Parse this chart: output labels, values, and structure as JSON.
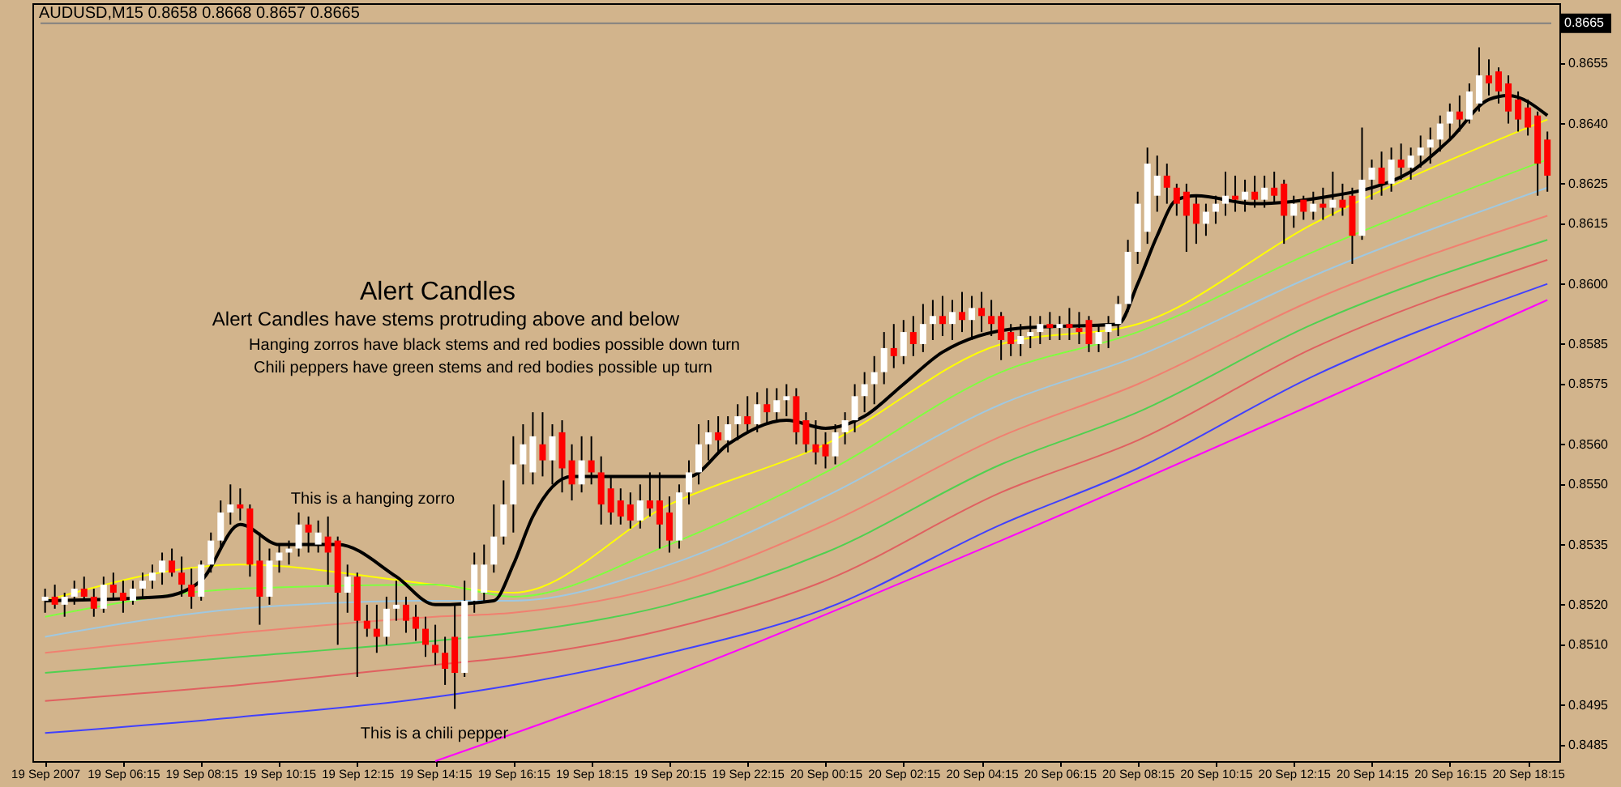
{
  "chart_data": {
    "type": "candlestick",
    "title": "AUDUSD,M15  0.8658 0.8668 0.8657 0.8665",
    "annotations": [
      "Alert Candles",
      "Alert Candles have stems protruding above and below",
      "Hanging zorros have black stems and red bodies possible down turn",
      "Chili peppers have green stems and red bodies possible up turn",
      "This is a hanging zorro",
      "This is a chili pepper"
    ],
    "x": [
      "2007-09-19T04:15",
      "2007-09-19T04:30",
      "2007-09-19T04:45",
      "2007-09-19T05:00",
      "2007-09-19T05:15",
      "2007-09-19T05:30",
      "2007-09-19T05:45",
      "2007-09-19T06:00",
      "2007-09-19T06:15",
      "2007-09-19T06:30",
      "2007-09-19T06:45",
      "2007-09-19T07:00",
      "2007-09-19T07:15",
      "2007-09-19T07:30",
      "2007-09-19T07:45",
      "2007-09-19T08:00",
      "2007-09-19T08:15",
      "2007-09-19T08:30",
      "2007-09-19T08:45",
      "2007-09-19T09:00",
      "2007-09-19T09:15",
      "2007-09-19T09:30",
      "2007-09-19T09:45",
      "2007-09-19T10:00",
      "2007-09-19T10:15",
      "2007-09-19T10:30",
      "2007-09-19T10:45",
      "2007-09-19T11:00",
      "2007-09-19T11:15",
      "2007-09-19T11:30",
      "2007-09-19T11:45",
      "2007-09-19T12:00",
      "2007-09-19T12:15",
      "2007-09-19T12:30",
      "2007-09-19T12:45",
      "2007-09-19T13:00",
      "2007-09-19T13:15",
      "2007-09-19T13:30",
      "2007-09-19T13:45",
      "2007-09-19T14:00",
      "2007-09-19T14:15",
      "2007-09-19T14:30",
      "2007-09-19T14:45",
      "2007-09-19T15:00",
      "2007-09-19T15:15",
      "2007-09-19T15:30",
      "2007-09-19T15:45",
      "2007-09-19T16:00",
      "2007-09-19T16:15",
      "2007-09-19T16:30",
      "2007-09-19T16:45",
      "2007-09-19T17:00",
      "2007-09-19T17:15",
      "2007-09-19T17:30",
      "2007-09-19T17:45",
      "2007-09-19T18:00",
      "2007-09-19T18:15",
      "2007-09-19T18:30",
      "2007-09-19T18:45",
      "2007-09-19T19:00",
      "2007-09-19T19:15",
      "2007-09-19T19:30",
      "2007-09-19T19:45",
      "2007-09-19T20:00",
      "2007-09-19T20:15",
      "2007-09-19T20:30",
      "2007-09-19T20:45",
      "2007-09-19T21:00",
      "2007-09-19T21:15",
      "2007-09-19T21:30",
      "2007-09-19T21:45",
      "2007-09-19T22:00",
      "2007-09-19T22:15",
      "2007-09-19T22:30",
      "2007-09-19T22:45",
      "2007-09-19T23:00",
      "2007-09-19T23:15",
      "2007-09-19T23:30",
      "2007-09-19T23:45",
      "2007-09-20T00:00",
      "2007-09-20T00:15",
      "2007-09-20T00:30",
      "2007-09-20T00:45",
      "2007-09-20T01:00",
      "2007-09-20T01:15",
      "2007-09-20T01:30",
      "2007-09-20T01:45",
      "2007-09-20T02:00",
      "2007-09-20T02:15",
      "2007-09-20T02:30",
      "2007-09-20T02:45",
      "2007-09-20T03:00",
      "2007-09-20T03:15",
      "2007-09-20T03:30",
      "2007-09-20T03:45",
      "2007-09-20T04:00",
      "2007-09-20T04:15",
      "2007-09-20T04:30",
      "2007-09-20T04:45",
      "2007-09-20T05:00",
      "2007-09-20T05:15",
      "2007-09-20T05:30",
      "2007-09-20T05:45",
      "2007-09-20T06:00",
      "2007-09-20T06:15",
      "2007-09-20T06:30",
      "2007-09-20T06:45",
      "2007-09-20T07:00",
      "2007-09-20T07:15",
      "2007-09-20T07:30",
      "2007-09-20T07:45",
      "2007-09-20T08:00",
      "2007-09-20T08:15",
      "2007-09-20T08:30",
      "2007-09-20T08:45",
      "2007-09-20T09:00",
      "2007-09-20T09:15",
      "2007-09-20T09:30",
      "2007-09-20T09:45",
      "2007-09-20T10:00",
      "2007-09-20T10:15",
      "2007-09-20T10:30",
      "2007-09-20T10:45",
      "2007-09-20T11:00",
      "2007-09-20T11:15",
      "2007-09-20T11:30",
      "2007-09-20T11:45",
      "2007-09-20T12:00",
      "2007-09-20T12:15",
      "2007-09-20T12:30",
      "2007-09-20T12:45",
      "2007-09-20T13:00",
      "2007-09-20T13:15",
      "2007-09-20T13:30",
      "2007-09-20T13:45",
      "2007-09-20T14:00",
      "2007-09-20T14:15",
      "2007-09-20T14:30",
      "2007-09-20T14:45",
      "2007-09-20T15:00",
      "2007-09-20T15:15",
      "2007-09-20T15:30",
      "2007-09-20T15:45",
      "2007-09-20T16:00",
      "2007-09-20T16:15",
      "2007-09-20T16:30",
      "2007-09-20T16:45",
      "2007-09-20T17:00",
      "2007-09-20T17:15",
      "2007-09-20T17:30",
      "2007-09-20T17:45",
      "2007-09-20T18:00",
      "2007-09-20T18:15",
      "2007-09-20T18:30",
      "2007-09-20T18:45"
    ],
    "ohlc": [
      [
        0.8521,
        0.8524,
        0.8518,
        0.8522
      ],
      [
        0.8522,
        0.8525,
        0.8519,
        0.852
      ],
      [
        0.852,
        0.8523,
        0.8517,
        0.8522
      ],
      [
        0.8522,
        0.8526,
        0.852,
        0.8524
      ],
      [
        0.8524,
        0.8527,
        0.8521,
        0.8522
      ],
      [
        0.8522,
        0.8524,
        0.8517,
        0.8519
      ],
      [
        0.8519,
        0.8527,
        0.8518,
        0.8525
      ],
      [
        0.8525,
        0.8528,
        0.8521,
        0.8523
      ],
      [
        0.8523,
        0.8526,
        0.8518,
        0.8521
      ],
      [
        0.8521,
        0.8526,
        0.852,
        0.8524
      ],
      [
        0.8524,
        0.8528,
        0.8522,
        0.8526
      ],
      [
        0.8526,
        0.853,
        0.8524,
        0.8528
      ],
      [
        0.8528,
        0.8533,
        0.8525,
        0.8531
      ],
      [
        0.8531,
        0.8534,
        0.8527,
        0.8528
      ],
      [
        0.8528,
        0.8532,
        0.8522,
        0.8525
      ],
      [
        0.8525,
        0.8529,
        0.8519,
        0.8522
      ],
      [
        0.8522,
        0.8531,
        0.8521,
        0.853
      ],
      [
        0.853,
        0.8538,
        0.8528,
        0.8536
      ],
      [
        0.8536,
        0.8546,
        0.8534,
        0.8543
      ],
      [
        0.8543,
        0.855,
        0.854,
        0.8545
      ],
      [
        0.8545,
        0.8549,
        0.8541,
        0.8544
      ],
      [
        0.8544,
        0.8545,
        0.8527,
        0.853
      ],
      [
        0.8531,
        0.8538,
        0.8515,
        0.8522
      ],
      [
        0.8522,
        0.8534,
        0.852,
        0.8531
      ],
      [
        0.8531,
        0.8535,
        0.8528,
        0.8533
      ],
      [
        0.8533,
        0.8536,
        0.853,
        0.8534
      ],
      [
        0.8534,
        0.8543,
        0.8532,
        0.854
      ],
      [
        0.854,
        0.8542,
        0.8533,
        0.8538
      ],
      [
        0.8535,
        0.8541,
        0.8533,
        0.8538
      ],
      [
        0.8537,
        0.8542,
        0.8525,
        0.8533
      ],
      [
        0.8536,
        0.8537,
        0.851,
        0.8523
      ],
      [
        0.8523,
        0.853,
        0.8518,
        0.8527
      ],
      [
        0.8527,
        0.8528,
        0.8502,
        0.8516
      ],
      [
        0.8516,
        0.852,
        0.8512,
        0.8514
      ],
      [
        0.8514,
        0.852,
        0.8508,
        0.8512
      ],
      [
        0.8512,
        0.8522,
        0.851,
        0.8519
      ],
      [
        0.8519,
        0.8526,
        0.8516,
        0.852
      ],
      [
        0.852,
        0.8522,
        0.8513,
        0.8516
      ],
      [
        0.8517,
        0.852,
        0.8511,
        0.8514
      ],
      [
        0.8514,
        0.8517,
        0.8507,
        0.851
      ],
      [
        0.851,
        0.8515,
        0.8505,
        0.8508
      ],
      [
        0.8508,
        0.8512,
        0.85,
        0.8504
      ],
      [
        0.8512,
        0.852,
        0.8494,
        0.8503
      ],
      [
        0.8503,
        0.8526,
        0.8502,
        0.8521
      ],
      [
        0.8521,
        0.8533,
        0.8518,
        0.853
      ],
      [
        0.8523,
        0.8535,
        0.8521,
        0.853
      ],
      [
        0.853,
        0.8545,
        0.8528,
        0.8537
      ],
      [
        0.8537,
        0.8551,
        0.8535,
        0.8545
      ],
      [
        0.8545,
        0.8562,
        0.8538,
        0.8555
      ],
      [
        0.8555,
        0.8565,
        0.855,
        0.856
      ],
      [
        0.8553,
        0.8568,
        0.855,
        0.8562
      ],
      [
        0.856,
        0.8568,
        0.8552,
        0.8556
      ],
      [
        0.8556,
        0.8565,
        0.855,
        0.8562
      ],
      [
        0.8563,
        0.8566,
        0.8548,
        0.8554
      ],
      [
        0.8556,
        0.856,
        0.8546,
        0.855
      ],
      [
        0.855,
        0.8562,
        0.8548,
        0.8556
      ],
      [
        0.8556,
        0.8562,
        0.855,
        0.8553
      ],
      [
        0.8553,
        0.8557,
        0.854,
        0.8545
      ],
      [
        0.8549,
        0.8552,
        0.854,
        0.8543
      ],
      [
        0.8546,
        0.8549,
        0.854,
        0.8542
      ],
      [
        0.8545,
        0.8548,
        0.8539,
        0.8541
      ],
      [
        0.8541,
        0.855,
        0.8539,
        0.8546
      ],
      [
        0.8546,
        0.8553,
        0.8542,
        0.8544
      ],
      [
        0.8546,
        0.8553,
        0.8534,
        0.854
      ],
      [
        0.8543,
        0.8547,
        0.8533,
        0.8536
      ],
      [
        0.8536,
        0.855,
        0.8534,
        0.8548
      ],
      [
        0.8548,
        0.8556,
        0.8545,
        0.8553
      ],
      [
        0.8553,
        0.8565,
        0.855,
        0.856
      ],
      [
        0.856,
        0.8566,
        0.8556,
        0.8563
      ],
      [
        0.8563,
        0.8567,
        0.8558,
        0.8561
      ],
      [
        0.8561,
        0.8567,
        0.8558,
        0.8565
      ],
      [
        0.8565,
        0.857,
        0.8561,
        0.8567
      ],
      [
        0.8567,
        0.8572,
        0.8563,
        0.8565
      ],
      [
        0.8565,
        0.8573,
        0.8563,
        0.857
      ],
      [
        0.857,
        0.8574,
        0.8565,
        0.8568
      ],
      [
        0.8568,
        0.8574,
        0.8566,
        0.8571
      ],
      [
        0.8571,
        0.8575,
        0.8567,
        0.8572
      ],
      [
        0.8572,
        0.8574,
        0.856,
        0.8563
      ],
      [
        0.8566,
        0.8568,
        0.8558,
        0.856
      ],
      [
        0.856,
        0.8566,
        0.8555,
        0.8558
      ],
      [
        0.856,
        0.8563,
        0.8554,
        0.8557
      ],
      [
        0.8557,
        0.8565,
        0.8555,
        0.8563
      ],
      [
        0.8563,
        0.8568,
        0.856,
        0.8566
      ],
      [
        0.8566,
        0.8575,
        0.8563,
        0.8572
      ],
      [
        0.8572,
        0.8578,
        0.8568,
        0.8575
      ],
      [
        0.8575,
        0.8582,
        0.857,
        0.8578
      ],
      [
        0.8578,
        0.8588,
        0.8575,
        0.8584
      ],
      [
        0.8584,
        0.859,
        0.8579,
        0.8582
      ],
      [
        0.8582,
        0.8591,
        0.858,
        0.8588
      ],
      [
        0.8588,
        0.8592,
        0.8582,
        0.8585
      ],
      [
        0.8585,
        0.8595,
        0.8583,
        0.859
      ],
      [
        0.859,
        0.8596,
        0.8586,
        0.8592
      ],
      [
        0.8592,
        0.8597,
        0.8587,
        0.859
      ],
      [
        0.859,
        0.8596,
        0.8586,
        0.8593
      ],
      [
        0.8593,
        0.8598,
        0.8588,
        0.8591
      ],
      [
        0.8591,
        0.8597,
        0.8586,
        0.8594
      ],
      [
        0.8594,
        0.8598,
        0.8588,
        0.8592
      ],
      [
        0.8592,
        0.8596,
        0.8587,
        0.859
      ],
      [
        0.8592,
        0.8593,
        0.8581,
        0.8586
      ],
      [
        0.8588,
        0.859,
        0.8582,
        0.8585
      ],
      [
        0.8585,
        0.859,
        0.8582,
        0.8587
      ],
      [
        0.8587,
        0.8592,
        0.8584,
        0.8588
      ],
      [
        0.8588,
        0.8592,
        0.8585,
        0.859
      ],
      [
        0.859,
        0.8593,
        0.8586,
        0.8589
      ],
      [
        0.8589,
        0.8592,
        0.8586,
        0.859
      ],
      [
        0.859,
        0.8594,
        0.8586,
        0.8589
      ],
      [
        0.8589,
        0.8593,
        0.8585,
        0.8588
      ],
      [
        0.8591,
        0.8592,
        0.8583,
        0.8585
      ],
      [
        0.8585,
        0.859,
        0.8583,
        0.8588
      ],
      [
        0.8588,
        0.8592,
        0.8584,
        0.859
      ],
      [
        0.859,
        0.8597,
        0.8587,
        0.8595
      ],
      [
        0.8595,
        0.8611,
        0.8593,
        0.8608
      ],
      [
        0.8608,
        0.8623,
        0.8605,
        0.862
      ],
      [
        0.8613,
        0.8634,
        0.861,
        0.863
      ],
      [
        0.8622,
        0.8632,
        0.8618,
        0.8627
      ],
      [
        0.8627,
        0.863,
        0.862,
        0.8624
      ],
      [
        0.8624,
        0.8625,
        0.8617,
        0.862
      ],
      [
        0.8623,
        0.8625,
        0.8608,
        0.8617
      ],
      [
        0.862,
        0.8622,
        0.861,
        0.8615
      ],
      [
        0.8615,
        0.862,
        0.8612,
        0.8618
      ],
      [
        0.8618,
        0.8622,
        0.8615,
        0.862
      ],
      [
        0.862,
        0.8628,
        0.8617,
        0.8622
      ],
      [
        0.8622,
        0.8627,
        0.8618,
        0.8621
      ],
      [
        0.8621,
        0.8626,
        0.8618,
        0.8623
      ],
      [
        0.8623,
        0.8627,
        0.8619,
        0.8621
      ],
      [
        0.8621,
        0.8627,
        0.8619,
        0.8624
      ],
      [
        0.8624,
        0.8628,
        0.862,
        0.8622
      ],
      [
        0.8625,
        0.8626,
        0.861,
        0.8617
      ],
      [
        0.8617,
        0.8622,
        0.8614,
        0.862
      ],
      [
        0.8621,
        0.8622,
        0.8616,
        0.8618
      ],
      [
        0.8618,
        0.8623,
        0.8616,
        0.862
      ],
      [
        0.862,
        0.8624,
        0.8616,
        0.8619
      ],
      [
        0.8619,
        0.8628,
        0.8617,
        0.8621
      ],
      [
        0.8621,
        0.8625,
        0.8617,
        0.8619
      ],
      [
        0.8622,
        0.8624,
        0.8605,
        0.8612
      ],
      [
        0.8612,
        0.8639,
        0.8611,
        0.8626
      ],
      [
        0.8626,
        0.8631,
        0.8621,
        0.8629
      ],
      [
        0.8629,
        0.8633,
        0.8622,
        0.8625
      ],
      [
        0.8625,
        0.8634,
        0.8623,
        0.8631
      ],
      [
        0.8631,
        0.8635,
        0.8626,
        0.8629
      ],
      [
        0.8629,
        0.8634,
        0.8626,
        0.8632
      ],
      [
        0.8632,
        0.8637,
        0.8629,
        0.8634
      ],
      [
        0.8634,
        0.8639,
        0.863,
        0.8636
      ],
      [
        0.8636,
        0.8642,
        0.8633,
        0.864
      ],
      [
        0.864,
        0.8645,
        0.8636,
        0.8643
      ],
      [
        0.8643,
        0.8647,
        0.8638,
        0.8641
      ],
      [
        0.8641,
        0.865,
        0.864,
        0.8648
      ],
      [
        0.8645,
        0.8659,
        0.8643,
        0.8652
      ],
      [
        0.8652,
        0.8656,
        0.8647,
        0.865
      ],
      [
        0.8653,
        0.8654,
        0.8645,
        0.8648
      ],
      [
        0.865,
        0.8652,
        0.864,
        0.8643
      ],
      [
        0.8646,
        0.8648,
        0.8638,
        0.8641
      ],
      [
        0.8644,
        0.8646,
        0.8637,
        0.8639
      ],
      [
        0.8642,
        0.8643,
        0.8622,
        0.863
      ],
      [
        0.8636,
        0.8638,
        0.8623,
        0.8627
      ]
    ],
    "series": [
      {
        "type": "line",
        "color": "#ffff00",
        "x": [
          "2007-09-19T04:15",
          "2007-09-19T09:15",
          "2007-09-19T14:15",
          "2007-09-19T16:15",
          "2007-09-19T20:15",
          "2007-09-20T00:15",
          "2007-09-20T04:45",
          "2007-09-20T08:15",
          "2007-09-20T12:45",
          "2007-09-20T18:45"
        ],
        "values": [
          0.8521,
          0.853,
          0.8525,
          0.8523,
          0.8545,
          0.856,
          0.8585,
          0.859,
          0.8615,
          0.8641
        ]
      },
      {
        "type": "line",
        "color": "#80ff40",
        "x": [
          "2007-09-19T04:15",
          "2007-09-19T09:15",
          "2007-09-19T14:15",
          "2007-09-19T16:15",
          "2007-09-19T20:15",
          "2007-09-20T00:15",
          "2007-09-20T04:45",
          "2007-09-20T08:15",
          "2007-09-20T12:45",
          "2007-09-20T18:45"
        ],
        "values": [
          0.8517,
          0.8524,
          0.8525,
          0.8522,
          0.8535,
          0.8553,
          0.8578,
          0.8588,
          0.8608,
          0.8631
        ]
      },
      {
        "type": "line",
        "color": "#a0c8e0",
        "x": [
          "2007-09-19T04:15",
          "2007-09-19T09:15",
          "2007-09-19T14:15",
          "2007-09-19T16:15",
          "2007-09-19T20:15",
          "2007-09-20T00:15",
          "2007-09-20T04:45",
          "2007-09-20T08:15",
          "2007-09-20T12:45",
          "2007-09-20T18:45"
        ],
        "values": [
          0.8512,
          0.8519,
          0.8521,
          0.8521,
          0.853,
          0.8547,
          0.857,
          0.8582,
          0.8602,
          0.8624
        ]
      },
      {
        "type": "line",
        "color": "#f08070",
        "x": [
          "2007-09-19T04:15",
          "2007-09-19T09:15",
          "2007-09-19T14:15",
          "2007-09-19T16:15",
          "2007-09-19T20:15",
          "2007-09-20T00:15",
          "2007-09-20T04:45",
          "2007-09-20T08:15",
          "2007-09-20T12:45",
          "2007-09-20T18:45"
        ],
        "values": [
          0.8508,
          0.8513,
          0.8517,
          0.8518,
          0.8525,
          0.854,
          0.8562,
          0.8575,
          0.8596,
          0.8617
        ]
      },
      {
        "type": "line",
        "color": "#50d050",
        "x": [
          "2007-09-19T04:15",
          "2007-09-19T09:15",
          "2007-09-19T14:15",
          "2007-09-19T16:15",
          "2007-09-19T20:15",
          "2007-09-20T00:15",
          "2007-09-20T04:45",
          "2007-09-20T08:15",
          "2007-09-20T12:45",
          "2007-09-20T18:45"
        ],
        "values": [
          0.8503,
          0.8507,
          0.8511,
          0.8513,
          0.852,
          0.8533,
          0.8555,
          0.8568,
          0.859,
          0.8611
        ]
      },
      {
        "type": "line",
        "color": "#e06060",
        "x": [
          "2007-09-19T04:15",
          "2007-09-19T09:15",
          "2007-09-19T14:15",
          "2007-09-19T16:15",
          "2007-09-19T20:15",
          "2007-09-20T00:15",
          "2007-09-20T04:45",
          "2007-09-20T08:15",
          "2007-09-20T12:45",
          "2007-09-20T18:45"
        ],
        "values": [
          0.8496,
          0.85,
          0.8505,
          0.8507,
          0.8514,
          0.8526,
          0.8548,
          0.8561,
          0.8584,
          0.8606
        ]
      },
      {
        "type": "line",
        "color": "#4040ff",
        "x": [
          "2007-09-19T04:15",
          "2007-09-19T09:15",
          "2007-09-19T14:15",
          "2007-09-19T16:15",
          "2007-09-19T20:15",
          "2007-09-20T00:15",
          "2007-09-20T04:45",
          "2007-09-20T08:15",
          "2007-09-20T12:45",
          "2007-09-20T18:45"
        ],
        "values": [
          0.8488,
          0.8492,
          0.8497,
          0.85,
          0.8508,
          0.8519,
          0.854,
          0.8554,
          0.8577,
          0.86
        ]
      },
      {
        "type": "line",
        "color": "#ff00ff",
        "x": [
          "2007-09-19T14:15",
          "2007-09-19T20:15",
          "2007-09-20T04:45",
          "2007-09-20T12:45",
          "2007-09-20T18:45"
        ],
        "values": [
          0.8481,
          0.8502,
          0.8536,
          0.857,
          0.8596
        ]
      },
      {
        "type": "line",
        "color": "#000000",
        "x": [
          "2007-09-19T04:15",
          "2007-09-19T07:15",
          "2007-09-19T08:15",
          "2007-09-19T09:15",
          "2007-09-19T10:15",
          "2007-09-19T11:45",
          "2007-09-19T13:15",
          "2007-09-19T14:15",
          "2007-09-19T15:45",
          "2007-09-19T16:15",
          "2007-09-19T16:45",
          "2007-09-19T17:45",
          "2007-09-19T20:45",
          "2007-09-19T21:45",
          "2007-09-19T23:15",
          "2007-09-20T00:15",
          "2007-09-20T01:15",
          "2007-09-20T02:15",
          "2007-09-20T03:15",
          "2007-09-20T05:15",
          "2007-09-20T07:45",
          "2007-09-20T08:15",
          "2007-09-20T08:45",
          "2007-09-20T09:15",
          "2007-09-20T09:45",
          "2007-09-20T11:15",
          "2007-09-20T13:15",
          "2007-09-20T14:15",
          "2007-09-20T15:15",
          "2007-09-20T16:15",
          "2007-09-20T17:15",
          "2007-09-20T17:45",
          "2007-09-20T18:45"
        ],
        "values": [
          0.8521,
          0.8522,
          0.8526,
          0.854,
          0.8535,
          0.8535,
          0.8527,
          0.852,
          0.8521,
          0.853,
          0.8542,
          0.8552,
          0.8552,
          0.856,
          0.8566,
          0.8564,
          0.8567,
          0.8575,
          0.8583,
          0.8589,
          0.859,
          0.86,
          0.8612,
          0.8621,
          0.8622,
          0.862,
          0.8622,
          0.8624,
          0.8628,
          0.8636,
          0.8646,
          0.8647,
          0.8642
        ]
      }
    ],
    "xlim": [
      "2007-09-19T04:08",
      "2007-09-20T18:51"
    ],
    "ylim": [
      0.8481,
      0.867
    ],
    "xticks": [
      {
        "value": "2007-09-19T04:15",
        "label": "19 Sep 2007"
      },
      {
        "value": "2007-09-19T06:15",
        "label": "19 Sep 06:15"
      },
      {
        "value": "2007-09-19T08:15",
        "label": "19 Sep 08:15"
      },
      {
        "value": "2007-09-19T10:15",
        "label": "19 Sep 10:15"
      },
      {
        "value": "2007-09-19T12:15",
        "label": "19 Sep 12:15"
      },
      {
        "value": "2007-09-19T14:15",
        "label": "19 Sep 14:15"
      },
      {
        "value": "2007-09-19T16:15",
        "label": "19 Sep 16:15"
      },
      {
        "value": "2007-09-19T18:15",
        "label": "19 Sep 18:15"
      },
      {
        "value": "2007-09-19T20:15",
        "label": "19 Sep 20:15"
      },
      {
        "value": "2007-09-19T22:15",
        "label": "19 Sep 22:15"
      },
      {
        "value": "2007-09-20T00:15",
        "label": "20 Sep 00:15"
      },
      {
        "value": "2007-09-20T02:15",
        "label": "20 Sep 02:15"
      },
      {
        "value": "2007-09-20T04:15",
        "label": "20 Sep 04:15"
      },
      {
        "value": "2007-09-20T06:15",
        "label": "20 Sep 06:15"
      },
      {
        "value": "2007-09-20T08:15",
        "label": "20 Sep 08:15"
      },
      {
        "value": "2007-09-20T10:15",
        "label": "20 Sep 10:15"
      },
      {
        "value": "2007-09-20T12:15",
        "label": "20 Sep 12:15"
      },
      {
        "value": "2007-09-20T14:15",
        "label": "20 Sep 14:15"
      },
      {
        "value": "2007-09-20T16:15",
        "label": "20 Sep 16:15"
      },
      {
        "value": "2007-09-20T18:15",
        "label": "20 Sep 18:15"
      }
    ],
    "yticks": [
      {
        "value": 0.8655,
        "label": "0.8655"
      },
      {
        "value": 0.864,
        "label": "0.8640"
      },
      {
        "value": 0.8625,
        "label": "0.8625"
      },
      {
        "value": 0.8615,
        "label": "0.8615"
      },
      {
        "value": 0.86,
        "label": "0.8600"
      },
      {
        "value": 0.8585,
        "label": "0.8585"
      },
      {
        "value": 0.8575,
        "label": "0.8575"
      },
      {
        "value": 0.856,
        "label": "0.8560"
      },
      {
        "value": 0.855,
        "label": "0.8550"
      },
      {
        "value": 0.8535,
        "label": "0.8535"
      },
      {
        "value": 0.852,
        "label": "0.8520"
      },
      {
        "value": 0.851,
        "label": "0.8510"
      },
      {
        "value": 0.8495,
        "label": "0.8495"
      },
      {
        "value": 0.8485,
        "label": "0.8485"
      }
    ],
    "ref_lines": [
      {
        "axis": "y",
        "value": 0.8665,
        "label": "0.8665",
        "color": "#808080"
      }
    ]
  }
}
